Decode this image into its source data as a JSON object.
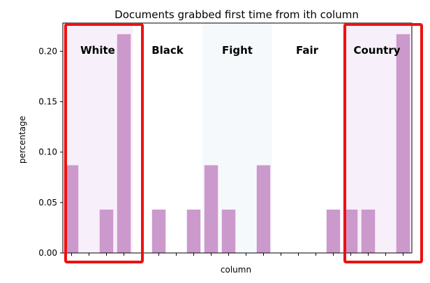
{
  "chart_data": {
    "type": "bar",
    "title": "Documents grabbed first time from ith column",
    "xlabel": "column",
    "ylabel": "percentage",
    "ylim": [
      0,
      0.228
    ],
    "yticks": [
      "0.00",
      "0.05",
      "0.10",
      "0.15",
      "0.20"
    ],
    "ytick_values": [
      0,
      0.05,
      0.1,
      0.15,
      0.2
    ],
    "x": [
      0,
      1,
      2,
      3,
      4,
      5,
      6,
      7,
      8,
      9,
      10,
      11,
      12,
      13,
      14,
      15,
      16,
      17,
      18,
      19
    ],
    "values": [
      0.087,
      0,
      0.043,
      0.217,
      0,
      0.043,
      0,
      0.043,
      0.087,
      0.043,
      0,
      0.087,
      0,
      0,
      0,
      0.043,
      0.043,
      0.043,
      0,
      0.217
    ],
    "bar_color": "#cc99cc",
    "groups": [
      {
        "label": "White",
        "columns": [
          0,
          3
        ],
        "shade": "#f7effa"
      },
      {
        "label": "Black",
        "columns": [
          4,
          7
        ],
        "shade": ""
      },
      {
        "label": "Fight",
        "columns": [
          8,
          11
        ],
        "shade": "#f5f9fb"
      },
      {
        "label": "Fair",
        "columns": [
          12,
          15
        ],
        "shade": ""
      },
      {
        "label": "Country",
        "columns": [
          16,
          19
        ],
        "shade": "#f7effa"
      }
    ],
    "highlight_color": "#ee1111",
    "highlighted_groups": [
      "White",
      "Country"
    ]
  }
}
